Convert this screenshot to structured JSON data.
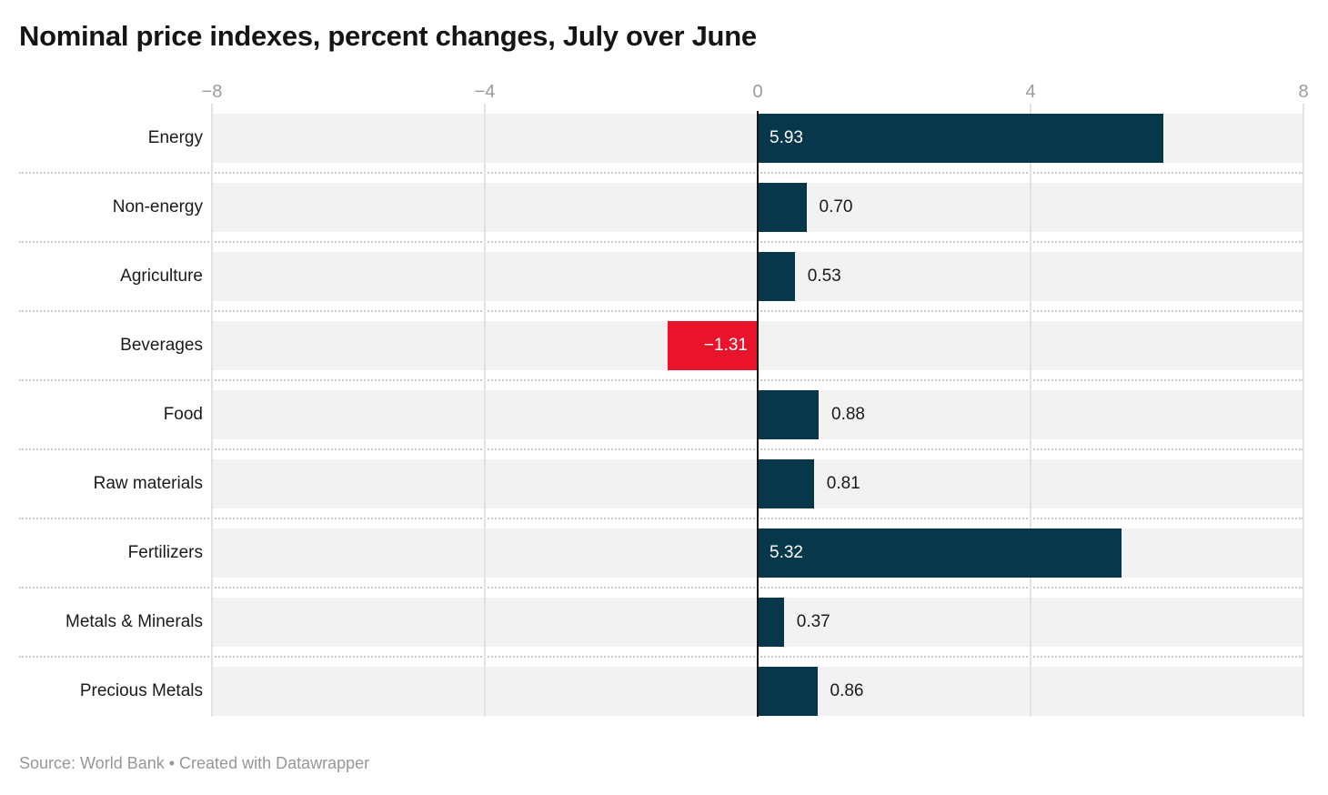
{
  "header": {
    "title": "Nominal price indexes, percent changes, July over June"
  },
  "footer": {
    "text": "Source: World Bank • Created with Datawrapper"
  },
  "chart_data": {
    "type": "bar",
    "orientation": "horizontal",
    "title": "Nominal price indexes, percent changes, July over June",
    "categories": [
      "Energy",
      "Non-energy",
      "Agriculture",
      "Beverages",
      "Food",
      "Raw materials",
      "Fertilizers",
      "Metals & Minerals",
      "Precious Metals"
    ],
    "values": [
      5.93,
      0.7,
      0.53,
      -1.31,
      0.88,
      0.81,
      5.32,
      0.37,
      0.86
    ],
    "value_labels": [
      "5.93",
      "0.70",
      "0.53",
      "−1.31",
      "0.88",
      "0.81",
      "5.32",
      "0.37",
      "0.86"
    ],
    "xlim": [
      -8,
      8
    ],
    "x_ticks": [
      {
        "value": -8,
        "label": "−8"
      },
      {
        "value": -4,
        "label": "−4"
      },
      {
        "value": 0,
        "label": "0"
      },
      {
        "value": 4,
        "label": "4"
      },
      {
        "value": 8,
        "label": "8"
      }
    ],
    "xlabel": "",
    "ylabel": "",
    "legend": null,
    "grid": "light vertical gridlines at ticks, black zero axis, dotted row separators, gray row bands",
    "colors": {
      "positive_bar": "#06374b",
      "negative_bar": "#e9142c",
      "row_band": "#f2f2f2",
      "gridline": "#e2e2e2",
      "zero_axis": "#161616",
      "tick_label": "#9b9b9b",
      "label_text": "#1a1a1a",
      "inside_value_text": "#ffffff"
    }
  }
}
